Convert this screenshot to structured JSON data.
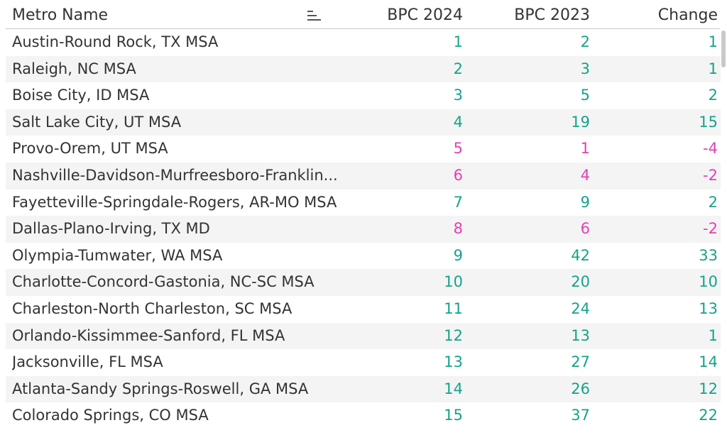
{
  "colors": {
    "positive": "#14a38b",
    "negative": "#e33fb5",
    "text": "#333333",
    "band": "#f4f4f4"
  },
  "columns": {
    "name": "Metro Name",
    "bpc2024": "BPC 2024",
    "bpc2023": "BPC 2023",
    "change": "Change"
  },
  "sort_icon": "sort-descending-icon",
  "rows": [
    {
      "name": "Austin-Round Rock, TX MSA",
      "bpc2024": "1",
      "bpc2023": "2",
      "change": "1",
      "trend": "pos"
    },
    {
      "name": "Raleigh, NC MSA",
      "bpc2024": "2",
      "bpc2023": "3",
      "change": "1",
      "trend": "pos"
    },
    {
      "name": "Boise City, ID MSA",
      "bpc2024": "3",
      "bpc2023": "5",
      "change": "2",
      "trend": "pos"
    },
    {
      "name": "Salt Lake City, UT MSA",
      "bpc2024": "4",
      "bpc2023": "19",
      "change": "15",
      "trend": "pos"
    },
    {
      "name": "Provo-Orem, UT MSA",
      "bpc2024": "5",
      "bpc2023": "1",
      "change": "-4",
      "trend": "neg"
    },
    {
      "name": "Nashville-Davidson-Murfreesboro-Franklin...",
      "bpc2024": "6",
      "bpc2023": "4",
      "change": "-2",
      "trend": "neg"
    },
    {
      "name": "Fayetteville-Springdale-Rogers, AR-MO MSA",
      "bpc2024": "7",
      "bpc2023": "9",
      "change": "2",
      "trend": "pos"
    },
    {
      "name": "Dallas-Plano-Irving, TX MD",
      "bpc2024": "8",
      "bpc2023": "6",
      "change": "-2",
      "trend": "neg"
    },
    {
      "name": "Olympia-Tumwater, WA MSA",
      "bpc2024": "9",
      "bpc2023": "42",
      "change": "33",
      "trend": "pos"
    },
    {
      "name": "Charlotte-Concord-Gastonia, NC-SC MSA",
      "bpc2024": "10",
      "bpc2023": "20",
      "change": "10",
      "trend": "pos"
    },
    {
      "name": "Charleston-North Charleston, SC MSA",
      "bpc2024": "11",
      "bpc2023": "24",
      "change": "13",
      "trend": "pos"
    },
    {
      "name": "Orlando-Kissimmee-Sanford, FL MSA",
      "bpc2024": "12",
      "bpc2023": "13",
      "change": "1",
      "trend": "pos"
    },
    {
      "name": "Jacksonville, FL MSA",
      "bpc2024": "13",
      "bpc2023": "27",
      "change": "14",
      "trend": "pos"
    },
    {
      "name": "Atlanta-Sandy Springs-Roswell, GA MSA",
      "bpc2024": "14",
      "bpc2023": "26",
      "change": "12",
      "trend": "pos"
    },
    {
      "name": "Colorado Springs, CO MSA",
      "bpc2024": "15",
      "bpc2023": "37",
      "change": "22",
      "trend": "pos"
    }
  ]
}
